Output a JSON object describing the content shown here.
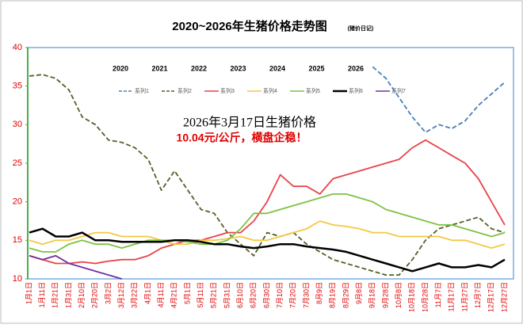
{
  "chart_data": {
    "type": "line",
    "title": "2020~2026年生猪价格走势图",
    "subtitle": "(猪价日记)",
    "annotations": [
      "2026年3月17日生猪价格",
      "10.04元/公斤，横盘企稳！"
    ],
    "years": [
      "2020",
      "2021",
      "2022",
      "2023",
      "2024",
      "2025",
      "2026"
    ],
    "categories": [
      "1月1日",
      "1月11日",
      "1月21日",
      "1月31日",
      "2月10日",
      "2月20日",
      "3月2日",
      "3月12日",
      "3月22日",
      "4月1日",
      "4月11日",
      "4月21日",
      "5月1日",
      "5月11日",
      "5月21日",
      "5月31日",
      "6月10日",
      "6月20日",
      "6月30日",
      "7月10日",
      "7月20日",
      "7月30日",
      "8月9日",
      "8月19日",
      "8月29日",
      "9月8日",
      "9月18日",
      "9月28日",
      "10月8日",
      "10月18日",
      "10月28日",
      "11月7日",
      "11月17日",
      "11月27日",
      "12月7日",
      "12月17日",
      "12月27日"
    ],
    "ylim": [
      10,
      40
    ],
    "yticks": [
      10,
      15,
      20,
      25,
      30,
      35,
      40
    ],
    "grid": false,
    "series": [
      {
        "name": "系列1",
        "color": "#4a7ebb",
        "dashed": true,
        "values": [
          null,
          null,
          null,
          null,
          null,
          null,
          null,
          null,
          null,
          null,
          null,
          null,
          null,
          null,
          null,
          null,
          null,
          null,
          null,
          null,
          null,
          null,
          null,
          null,
          null,
          null,
          37.5,
          36,
          33.5,
          31,
          29,
          30,
          29.5,
          30.5,
          32.5,
          34,
          35.5
        ]
      },
      {
        "name": "系列2",
        "color": "#4f6228",
        "dashed": true,
        "values": [
          36.3,
          36.5,
          36,
          34.5,
          31,
          30,
          28,
          27.7,
          27,
          25.5,
          21.5,
          24,
          21.5,
          19,
          18.5,
          16,
          14.5,
          13,
          16,
          15.5,
          16,
          14.5,
          13.5,
          12.5,
          12,
          11.5,
          11,
          10.5,
          10.5,
          12.5,
          15,
          16.5,
          17,
          17.5,
          18,
          16.5,
          16
        ]
      },
      {
        "name": "系列3",
        "color": "#e8434a",
        "dashed": false,
        "values": [
          13,
          12.5,
          12,
          12,
          12.2,
          12,
          12.3,
          12.5,
          12.5,
          13,
          14,
          14.5,
          15,
          15,
          15.5,
          16,
          16,
          17.5,
          20,
          23.5,
          22,
          22,
          21,
          23,
          23.5,
          24,
          24.5,
          25,
          25.5,
          27,
          28,
          27,
          26,
          25,
          23,
          20,
          17
        ]
      },
      {
        "name": "系列4",
        "color": "#f5c842",
        "dashed": false,
        "values": [
          15,
          14.5,
          15,
          15,
          15.5,
          16,
          16,
          15.5,
          15.5,
          15.5,
          15,
          14.5,
          14.5,
          15,
          15,
          15.2,
          15.5,
          15,
          15,
          15.5,
          16,
          16.5,
          17.5,
          17,
          16.8,
          16.5,
          16,
          16,
          15.5,
          15.5,
          15.5,
          15.5,
          15,
          15,
          14.5,
          14,
          14.5
        ]
      },
      {
        "name": "系列5",
        "color": "#7dc242",
        "dashed": false,
        "values": [
          14,
          13.5,
          13.5,
          14.5,
          15,
          14.5,
          14.5,
          14,
          14.5,
          15,
          15,
          15,
          14.8,
          14.5,
          14.5,
          15,
          16.5,
          18.5,
          18.5,
          19,
          19.5,
          20,
          20.5,
          21,
          21,
          20.5,
          20,
          19,
          18.5,
          18,
          17.5,
          17,
          17,
          16.5,
          16,
          15.5,
          16
        ]
      },
      {
        "name": "系列6",
        "color": "#000000",
        "dashed": false,
        "values": [
          16,
          16.5,
          15.5,
          15.5,
          16,
          15,
          15,
          14.8,
          14.8,
          14.8,
          14.8,
          15,
          15,
          14.8,
          14.5,
          14.5,
          14.2,
          14,
          14.2,
          14.5,
          14.5,
          14.2,
          14,
          13.8,
          13.5,
          13,
          12.5,
          12,
          11.5,
          11,
          11.5,
          12,
          11.5,
          11.5,
          11.8,
          11.5,
          12.5
        ]
      },
      {
        "name": "系列7",
        "color": "#7030a0",
        "dashed": false,
        "values": [
          13,
          12.5,
          13,
          12,
          11.5,
          11,
          10.5,
          10,
          null,
          null,
          null,
          null,
          null,
          null,
          null,
          null,
          null,
          null,
          null,
          null,
          null,
          null,
          null,
          null,
          null,
          null,
          null,
          null,
          null,
          null,
          null,
          null,
          null,
          null,
          null,
          null,
          null
        ]
      }
    ]
  }
}
